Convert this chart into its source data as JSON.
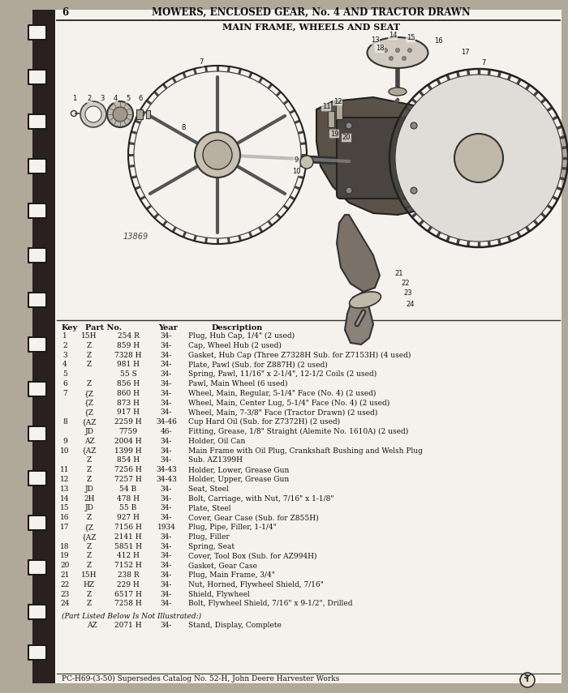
{
  "page_number": "6",
  "header_title": "MOWERS, ENCLOSED GEAR, No. 4 AND TRACTOR DRAWN",
  "section_title": "MAIN FRAME, WHEELS AND SEAT",
  "diagram_label": "13869",
  "footer": "PC-H69-(3-50) Supersedes Catalog No. 52-H, John Deere Harvester Works",
  "bg_color": "#b0a898",
  "page_bg": "#f5f2ed",
  "text_color": "#111111",
  "table_rows": [
    [
      "1",
      "15H",
      "254 R",
      "34-",
      "Plug, Hub Cap, 1/4\" (2 used)"
    ],
    [
      "2",
      "Z",
      "859 H",
      "34-",
      "Cap, Wheel Hub (2 used)"
    ],
    [
      "3",
      "Z",
      "7328 H",
      "34-",
      "Gasket, Hub Cap (Three Z7328H Sub. for Z7153H) (4 used)"
    ],
    [
      "4",
      "Z",
      "981 H",
      "34-",
      "Plate, Pawl (Sub. for Z887H) (2 used)"
    ],
    [
      "5",
      "",
      "55 S",
      "34-",
      "Spring, Pawl, 11/16\" x 2-1/4\", 12-1/2 Coils (2 used)"
    ],
    [
      "6",
      "Z",
      "856 H",
      "34-",
      "Pawl, Main Wheel (6 used)"
    ],
    [
      "7",
      "{Z",
      "860 H",
      "34-",
      "Wheel, Main, Regular, 5-1/4\" Face (No. 4) (2 used)"
    ],
    [
      "",
      "{Z",
      "873 H",
      "34-",
      "Wheel, Main, Center Lug, 5-1/4\" Face (No. 4) (2 used)"
    ],
    [
      "",
      "{Z",
      "917 H",
      "34-",
      "Wheel, Main, 7-3/8\" Face (Tractor Drawn) (2 used)"
    ],
    [
      "8",
      "{AZ",
      "2259 H",
      "34-46",
      "Cup Hard Oil (Sub. for Z7372H) (2 used)"
    ],
    [
      "",
      "JD",
      "7759",
      "46-",
      "Fitting, Grease, 1/8\" Straight (Alemite No. 1610A) (2 used)"
    ],
    [
      "9",
      "AZ",
      "2004 H",
      "34-",
      "Holder, Oil Can"
    ],
    [
      "10",
      "{AZ",
      "1399 H",
      "34-",
      "Main Frame with Oil Plug, Crankshaft Bushing and Welsh Plug"
    ],
    [
      "",
      "Z",
      "854 H",
      "34-",
      "Sub. AZ1399H"
    ],
    [
      "11",
      "Z",
      "7256 H",
      "34-43",
      "Holder, Lower, Grease Gun"
    ],
    [
      "12",
      "Z",
      "7257 H",
      "34-43",
      "Holder, Upper, Grease Gun"
    ],
    [
      "13",
      "JD",
      "54 B",
      "34-",
      "Seat, Steel"
    ],
    [
      "14",
      "2H",
      "478 H",
      "34-",
      "Bolt, Carriage, with Nut, 7/16\" x 1-1/8\""
    ],
    [
      "15",
      "JD",
      "55 B",
      "34-",
      "Plate, Steel"
    ],
    [
      "16",
      "Z",
      "927 H",
      "34-",
      "Cover, Gear Case (Sub. for Z855H)"
    ],
    [
      "17",
      "{Z",
      "7156 H",
      "1934",
      "Plug, Pipe, Filler, 1-1/4\""
    ],
    [
      "",
      "{AZ",
      "2141 H",
      "34-",
      "Plug, Filler"
    ],
    [
      "18",
      "Z",
      "5851 H",
      "34-",
      "Spring, Seat"
    ],
    [
      "19",
      "Z",
      "412 H",
      "34-",
      "Cover, Tool Box (Sub. for AZ994H)"
    ],
    [
      "20",
      "Z",
      "7152 H",
      "34-",
      "Gasket, Gear Case"
    ],
    [
      "21",
      "15H",
      "238 R",
      "34-",
      "Plug, Main Frame, 3/4\""
    ],
    [
      "22",
      "HZ",
      "229 H",
      "34-",
      "Nut, Horned, Flywheel Shield, 7/16\""
    ],
    [
      "23",
      "Z",
      "6517 H",
      "34-",
      "Shield, Flywheel"
    ],
    [
      "24",
      "Z",
      "7258 H",
      "34-",
      "Bolt, Flywheel Shield, 7/16\" x 9-1/2\", Drilled"
    ]
  ],
  "not_illustrated_label": "(Part Listed Below Is Not Illustrated:)",
  "not_illus_row": [
    "AZ",
    "2071 H",
    "34-",
    "Stand, Display, Complete"
  ]
}
